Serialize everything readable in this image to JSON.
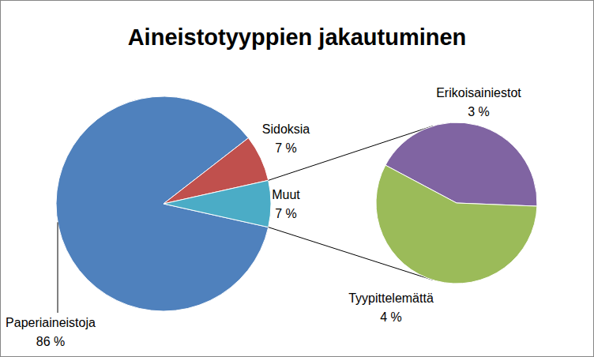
{
  "chart_data": {
    "type": "pie",
    "title": "Aineistotyyppien jakautuminen",
    "categories": [
      "Paperiaineistoja",
      "Sidoksia",
      "Muut"
    ],
    "values": [
      86,
      7,
      7
    ],
    "value_labels": [
      "86 %",
      "7 %",
      "7 %"
    ],
    "colors": [
      "#4f81bd",
      "#c0504d",
      "#4bacc6"
    ],
    "data_labels": true,
    "secondary": {
      "categories": [
        "Erikoisainiestot",
        "Tyypittelemättä"
      ],
      "values": [
        3,
        4
      ],
      "value_labels": [
        "3 %",
        "4 %"
      ],
      "colors": [
        "#8064a2",
        "#9bbb59"
      ]
    }
  }
}
